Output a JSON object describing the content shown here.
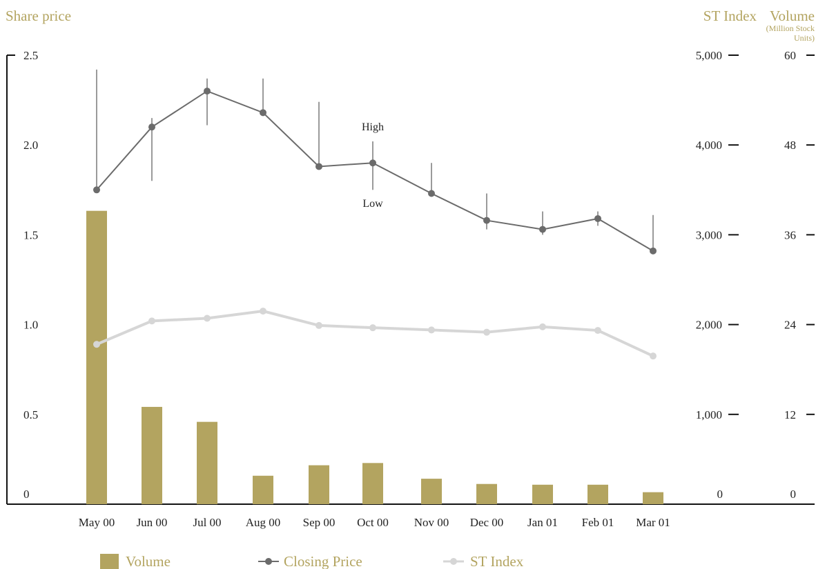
{
  "chart_data": {
    "type": "bar+line",
    "axes": {
      "left_title": "Share price",
      "right1_title": "ST Index",
      "right2_title": "Volume",
      "right2_subtitle_line1": "(Million Stock",
      "right2_subtitle_line2": "Units)",
      "left_ticks": [
        "0",
        "0.5",
        "1.0",
        "1.5",
        "2.0",
        "2.5"
      ],
      "left_range": [
        0,
        2.5
      ],
      "st_ticks": [
        "0",
        "1,000",
        "2,000",
        "3,000",
        "4,000",
        "5,000"
      ],
      "st_range": [
        0,
        5000
      ],
      "volume_ticks": [
        "0",
        "12",
        "24",
        "36",
        "48",
        "60"
      ],
      "volume_range": [
        0,
        60
      ]
    },
    "categories": [
      "May 00",
      "Jun 00",
      "Jul 00",
      "Aug 00",
      "Sep 00",
      "Oct 00",
      "Nov 00",
      "Dec 00",
      "Jan 01",
      "Feb 01",
      "Mar 01"
    ],
    "series": [
      {
        "name": "Volume",
        "axis": "volume",
        "values": [
          39.2,
          13.0,
          11.0,
          3.8,
          5.2,
          5.5,
          3.4,
          2.7,
          2.6,
          2.6,
          1.6
        ]
      },
      {
        "name": "Closing Price",
        "axis": "left",
        "values": [
          1.75,
          2.1,
          2.3,
          2.18,
          1.88,
          1.9,
          1.73,
          1.58,
          1.53,
          1.59,
          1.41
        ],
        "high": [
          2.42,
          2.15,
          2.37,
          2.37,
          2.24,
          2.02,
          1.9,
          1.73,
          1.63,
          1.63,
          1.61
        ],
        "low": [
          1.75,
          1.8,
          2.11,
          2.18,
          1.88,
          1.75,
          1.73,
          1.53,
          1.5,
          1.55,
          1.41
        ]
      },
      {
        "name": "ST Index",
        "axis": "st",
        "values": [
          1780,
          2040,
          2070,
          2150,
          1990,
          1965,
          1940,
          1915,
          1975,
          1935,
          1650
        ]
      }
    ],
    "annotations": {
      "high": "High",
      "low": "Low"
    },
    "colors": {
      "volume": "#b3a460",
      "closing_price": "#6b6b6b",
      "st_index": "#d6d6d6",
      "axis": "#111111"
    }
  }
}
